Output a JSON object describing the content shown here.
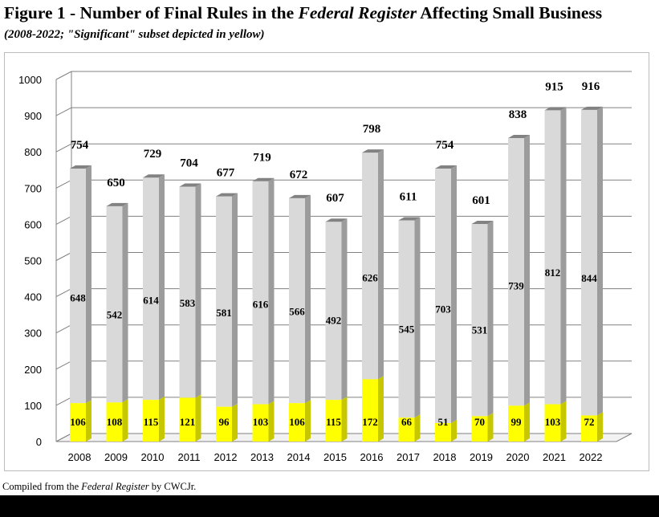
{
  "title": {
    "prefix": "Figure 1 - Number of Final Rules in the ",
    "italic": "Federal Register",
    "suffix": " Affecting Small Business"
  },
  "subtitle": "(2008-2022; \"Significant\" subset depicted in yellow)",
  "footer": {
    "prefix": "Compiled from the ",
    "italic": "Federal Register",
    "suffix": " by CWCJr."
  },
  "colors": {
    "total_bar": "#d9d9d9",
    "significant_bar": "#ffff00",
    "gridline": "#808080"
  },
  "chart_data": {
    "type": "bar",
    "stacked": true,
    "categories": [
      "2008",
      "2009",
      "2010",
      "2011",
      "2012",
      "2013",
      "2014",
      "2015",
      "2016",
      "2017",
      "2018",
      "2019",
      "2020",
      "2021",
      "2022"
    ],
    "series": [
      {
        "color": "#ffff00",
        "values": [
          106,
          108,
          115,
          121,
          96,
          103,
          106,
          115,
          172,
          66,
          51,
          70,
          99,
          103,
          72
        ]
      },
      {
        "color": "#d9d9d9",
        "values": [
          648,
          542,
          614,
          583,
          581,
          616,
          566,
          492,
          626,
          545,
          703,
          531,
          739,
          812,
          844
        ]
      }
    ],
    "totals": [
      754,
      650,
      729,
      704,
      677,
      719,
      672,
      607,
      798,
      611,
      754,
      601,
      838,
      915,
      916
    ],
    "y_ticks": [
      "0",
      "100",
      "200",
      "300",
      "400",
      "500",
      "600",
      "700",
      "800",
      "900",
      "1000"
    ],
    "ylim": [
      0,
      1000
    ],
    "grid": true,
    "xlabel": "",
    "ylabel": ""
  }
}
